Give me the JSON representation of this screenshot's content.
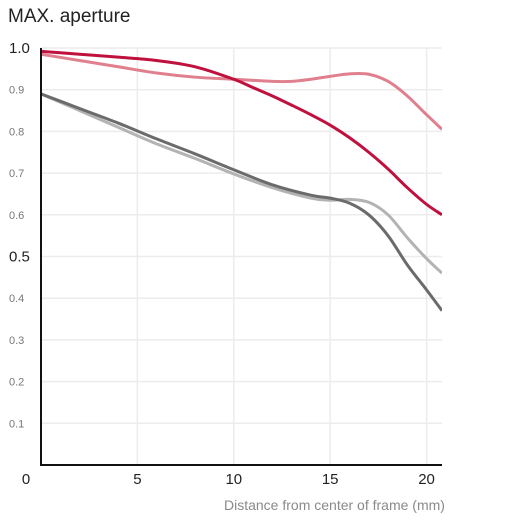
{
  "chart_data": {
    "type": "line",
    "title": "MAX. aperture",
    "xlabel": "Distance from center of frame (mm)",
    "ylabel": "",
    "xlim": [
      0,
      20.8
    ],
    "ylim": [
      0,
      1.0
    ],
    "x_ticks": [
      {
        "value": 0,
        "label": "0"
      },
      {
        "value": 5,
        "label": "5"
      },
      {
        "value": 10,
        "label": "10"
      },
      {
        "value": 15,
        "label": "15"
      },
      {
        "value": 20,
        "label": "20"
      }
    ],
    "y_ticks": [
      {
        "value": 0.1,
        "label": "0.1",
        "major": false
      },
      {
        "value": 0.2,
        "label": "0.2",
        "major": false
      },
      {
        "value": 0.3,
        "label": "0.3",
        "major": false
      },
      {
        "value": 0.4,
        "label": "0.4",
        "major": false
      },
      {
        "value": 0.5,
        "label": "0.5",
        "major": true
      },
      {
        "value": 0.6,
        "label": "0.6",
        "major": false
      },
      {
        "value": 0.7,
        "label": "0.7",
        "major": false
      },
      {
        "value": 0.8,
        "label": "0.8",
        "major": false
      },
      {
        "value": 0.9,
        "label": "0.9",
        "major": false
      },
      {
        "value": 1.0,
        "label": "1.0",
        "major": true
      }
    ],
    "grid": true,
    "legend": "none",
    "series": [
      {
        "color": "#e0808f",
        "x": [
          0,
          2,
          4,
          6,
          8,
          10,
          12,
          13,
          14,
          15,
          16,
          17,
          18,
          19,
          20,
          20.8
        ],
        "y": [
          0.985,
          0.97,
          0.955,
          0.94,
          0.93,
          0.925,
          0.92,
          0.92,
          0.925,
          0.932,
          0.938,
          0.937,
          0.92,
          0.885,
          0.84,
          0.805
        ]
      },
      {
        "color": "#c0103e",
        "x": [
          0,
          2,
          4,
          6,
          8,
          10,
          11,
          12,
          13,
          14,
          15,
          16,
          17,
          18,
          19,
          20,
          20.8
        ],
        "y": [
          0.992,
          0.985,
          0.978,
          0.97,
          0.955,
          0.925,
          0.905,
          0.885,
          0.863,
          0.84,
          0.815,
          0.785,
          0.75,
          0.71,
          0.665,
          0.625,
          0.6
        ]
      },
      {
        "color": "#b3b3b3",
        "x": [
          0,
          2,
          4,
          6,
          8,
          10,
          12,
          14,
          15,
          16,
          17,
          18,
          19,
          20,
          20.8
        ],
        "y": [
          0.89,
          0.85,
          0.81,
          0.77,
          0.735,
          0.698,
          0.665,
          0.64,
          0.635,
          0.637,
          0.63,
          0.6,
          0.545,
          0.495,
          0.46
        ]
      },
      {
        "color": "#6b6b6b",
        "x": [
          0,
          2,
          4,
          6,
          8,
          10,
          12,
          14,
          15,
          16,
          17,
          18,
          19,
          20,
          20.8
        ],
        "y": [
          0.89,
          0.855,
          0.82,
          0.782,
          0.746,
          0.708,
          0.672,
          0.647,
          0.64,
          0.628,
          0.6,
          0.55,
          0.48,
          0.42,
          0.37
        ]
      }
    ]
  }
}
